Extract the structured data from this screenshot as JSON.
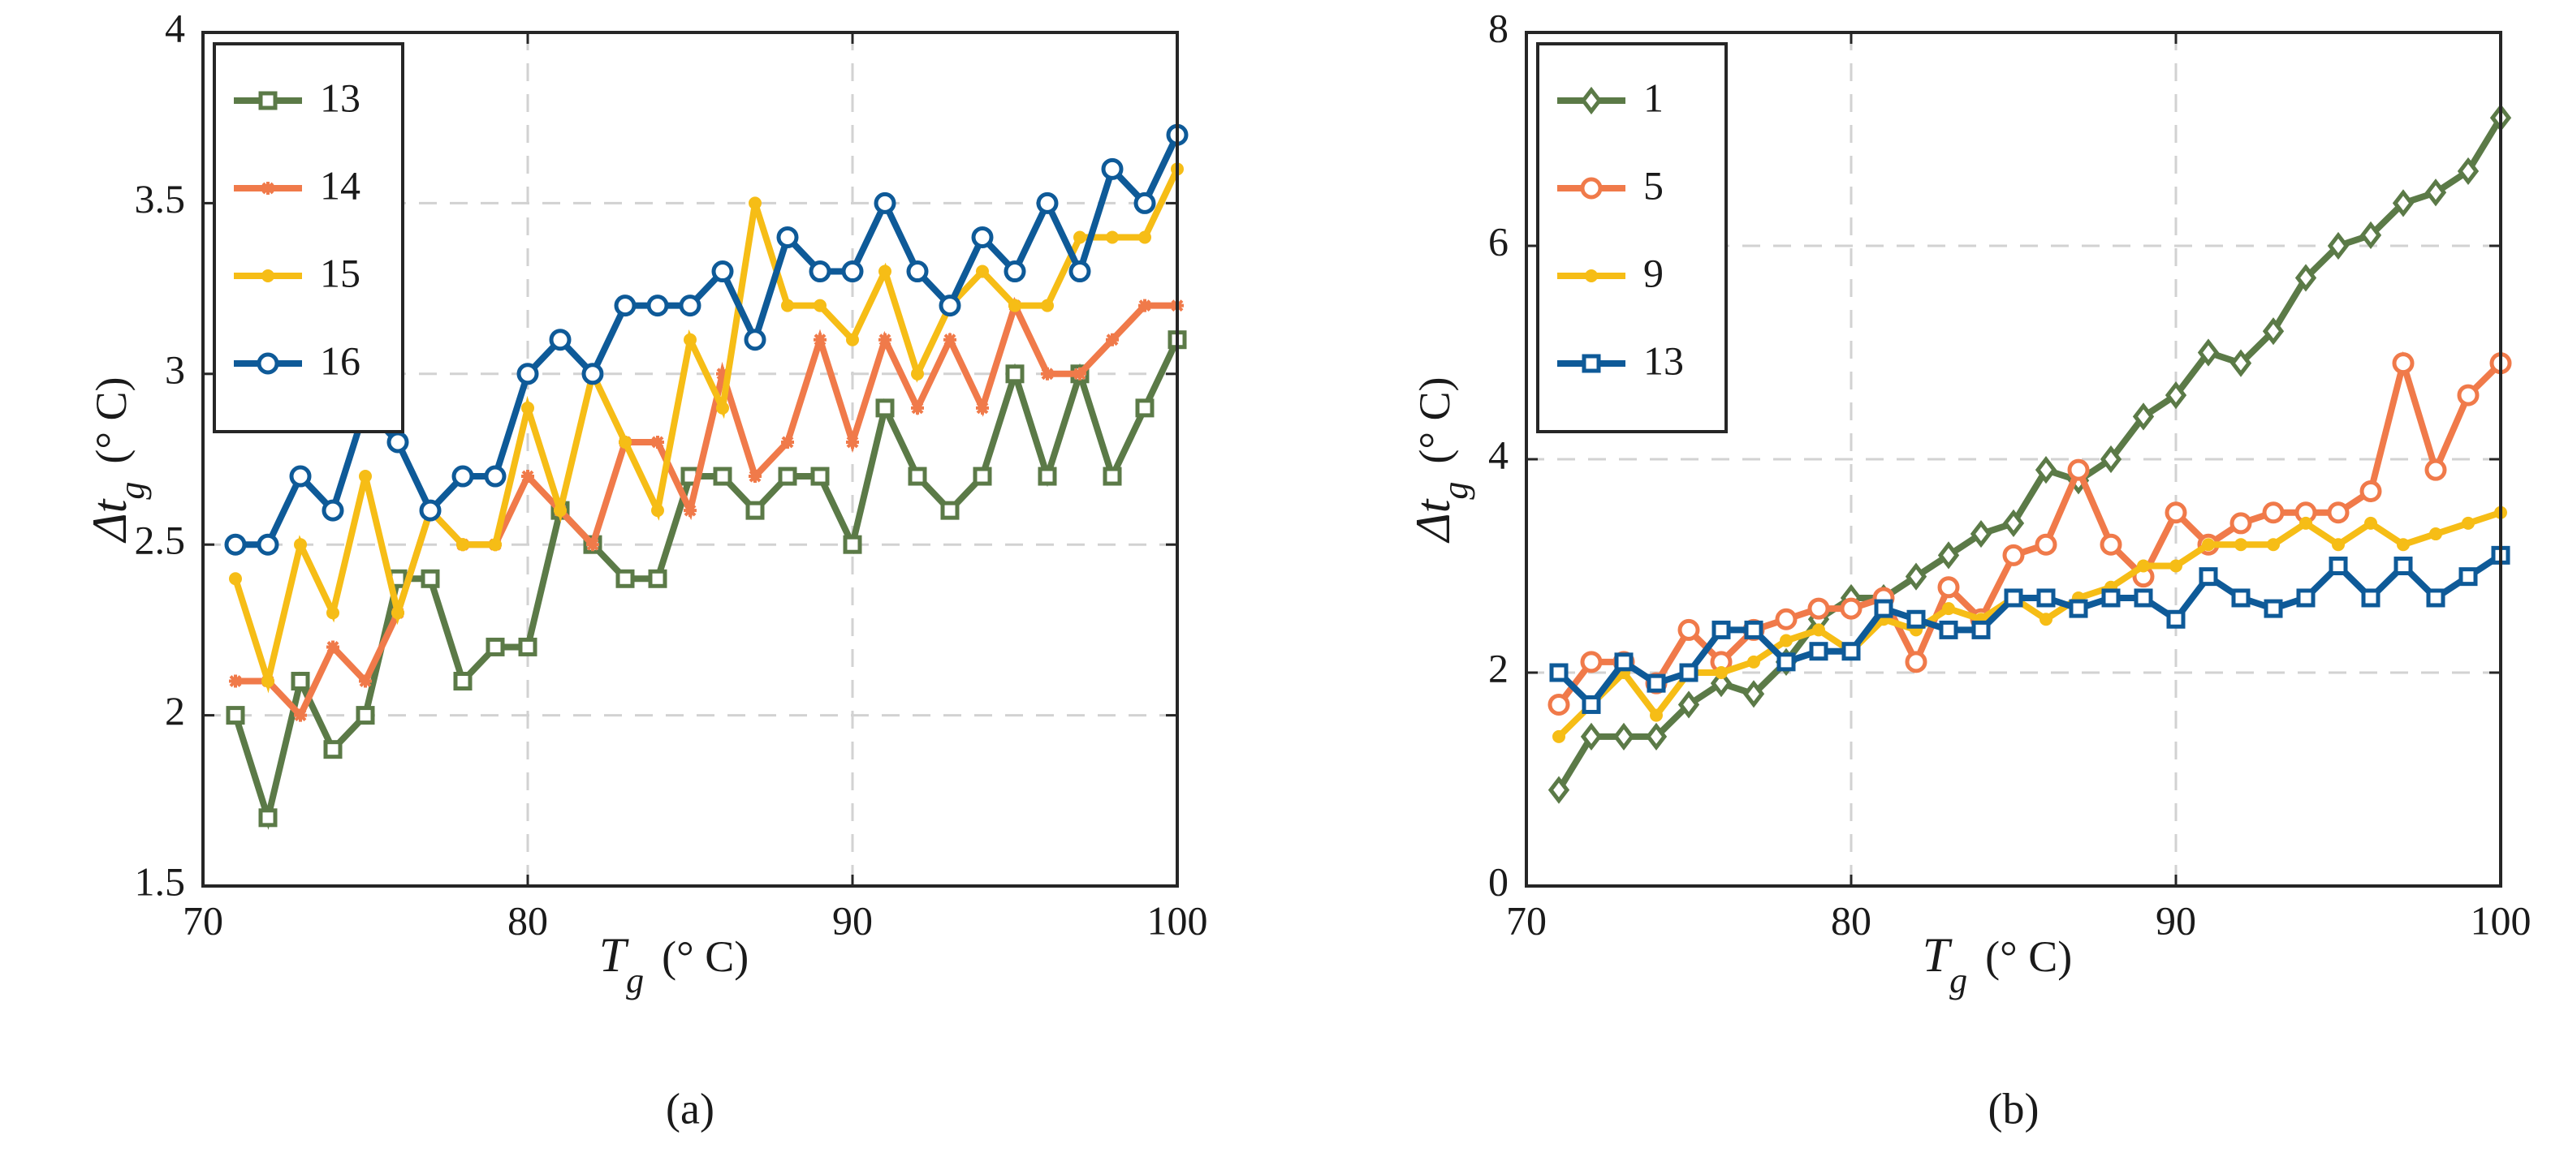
{
  "chart_data": [
    {
      "type": "line",
      "panel_label": "(a)",
      "xlabel_main": "T",
      "xlabel_sub": "g",
      "xlabel_unit": "(° C)",
      "ylabel_main": "Δt",
      "ylabel_sub": "g",
      "ylabel_unit": "(° C)",
      "xlim": [
        70,
        100
      ],
      "ylim": [
        1.5,
        4
      ],
      "xticks": [
        70,
        80,
        90,
        100
      ],
      "xtick_labels": [
        "70",
        "80",
        "90",
        "100"
      ],
      "yticks": [
        1.5,
        2,
        2.5,
        3,
        3.5,
        4
      ],
      "ytick_labels": [
        "1.5",
        "2",
        "2.5",
        "3",
        "3.5",
        "4"
      ],
      "grid": true,
      "legend_position": "top-left",
      "x": [
        71,
        72,
        73,
        74,
        75,
        76,
        77,
        78,
        79,
        80,
        81,
        82,
        83,
        84,
        85,
        86,
        87,
        88,
        89,
        90,
        91,
        92,
        93,
        94,
        95,
        96,
        97,
        98,
        99,
        100
      ],
      "series": [
        {
          "name": "13",
          "color": "#5b7a47",
          "marker": "square",
          "values": [
            2.0,
            1.7,
            2.1,
            1.9,
            2.0,
            2.4,
            2.4,
            2.1,
            2.2,
            2.2,
            2.6,
            2.5,
            2.4,
            2.4,
            2.7,
            2.7,
            2.6,
            2.7,
            2.7,
            2.5,
            2.9,
            2.7,
            2.6,
            2.7,
            3.0,
            2.7,
            3.0,
            2.7,
            2.9,
            3.1
          ]
        },
        {
          "name": "14",
          "color": "#f07a4a",
          "marker": "star",
          "values": [
            2.1,
            2.1,
            2.0,
            2.2,
            2.1,
            2.3,
            2.6,
            2.5,
            2.5,
            2.7,
            2.6,
            2.5,
            2.8,
            2.8,
            2.6,
            3.0,
            2.7,
            2.8,
            3.1,
            2.8,
            3.1,
            2.9,
            3.1,
            2.9,
            3.2,
            3.0,
            3.0,
            3.1,
            3.2,
            3.2
          ]
        },
        {
          "name": "15",
          "color": "#f6bd16",
          "marker": "dot",
          "values": [
            2.4,
            2.1,
            2.5,
            2.3,
            2.7,
            2.3,
            2.6,
            2.5,
            2.5,
            2.9,
            2.6,
            3.0,
            2.8,
            2.6,
            3.1,
            2.9,
            3.5,
            3.2,
            3.2,
            3.1,
            3.3,
            3.0,
            3.2,
            3.3,
            3.2,
            3.2,
            3.4,
            3.4,
            3.4,
            3.6
          ]
        },
        {
          "name": "16",
          "color": "#0e5a98",
          "marker": "circle",
          "values": [
            2.5,
            2.5,
            2.7,
            2.6,
            2.9,
            2.8,
            2.6,
            2.7,
            2.7,
            3.0,
            3.1,
            3.0,
            3.2,
            3.2,
            3.2,
            3.3,
            3.1,
            3.4,
            3.3,
            3.3,
            3.5,
            3.3,
            3.2,
            3.4,
            3.3,
            3.5,
            3.3,
            3.6,
            3.5,
            3.7
          ]
        }
      ]
    },
    {
      "type": "line",
      "panel_label": "(b)",
      "xlabel_main": "T",
      "xlabel_sub": "g",
      "xlabel_unit": "(° C)",
      "ylabel_main": "Δt",
      "ylabel_sub": "g",
      "ylabel_unit": "(° C)",
      "xlim": [
        70,
        100
      ],
      "ylim": [
        0,
        8
      ],
      "xticks": [
        70,
        80,
        90,
        100
      ],
      "xtick_labels": [
        "70",
        "80",
        "90",
        "100"
      ],
      "yticks": [
        0,
        2,
        4,
        6,
        8
      ],
      "ytick_labels": [
        "0",
        "2",
        "4",
        "6",
        "8"
      ],
      "grid": true,
      "legend_position": "top-left",
      "x": [
        71,
        72,
        73,
        74,
        75,
        76,
        77,
        78,
        79,
        80,
        81,
        82,
        83,
        84,
        85,
        86,
        87,
        88,
        89,
        90,
        91,
        92,
        93,
        94,
        95,
        96,
        97,
        98,
        99,
        100
      ],
      "series": [
        {
          "name": "1",
          "color": "#5b7a47",
          "marker": "diamond",
          "values": [
            0.9,
            1.4,
            1.4,
            1.4,
            1.7,
            1.9,
            1.8,
            2.1,
            2.5,
            2.7,
            2.7,
            2.9,
            3.1,
            3.3,
            3.4,
            3.9,
            3.8,
            4.0,
            4.4,
            4.6,
            5.0,
            4.9,
            5.2,
            5.7,
            6.0,
            6.1,
            6.4,
            6.5,
            6.7,
            7.2
          ]
        },
        {
          "name": "5",
          "color": "#f07a4a",
          "marker": "circle",
          "values": [
            1.7,
            2.1,
            2.1,
            1.9,
            2.4,
            2.1,
            2.4,
            2.5,
            2.6,
            2.6,
            2.7,
            2.1,
            2.8,
            2.5,
            3.1,
            3.2,
            3.9,
            3.2,
            2.9,
            3.5,
            3.2,
            3.4,
            3.5,
            3.5,
            3.5,
            3.7,
            4.9,
            3.9,
            4.6,
            4.9
          ]
        },
        {
          "name": "9",
          "color": "#f6bd16",
          "marker": "dot",
          "values": [
            1.4,
            1.7,
            2.0,
            1.6,
            2.0,
            2.0,
            2.1,
            2.3,
            2.4,
            2.2,
            2.5,
            2.4,
            2.6,
            2.5,
            2.7,
            2.5,
            2.7,
            2.8,
            3.0,
            3.0,
            3.2,
            3.2,
            3.2,
            3.4,
            3.2,
            3.4,
            3.2,
            3.3,
            3.4,
            3.5
          ]
        },
        {
          "name": "13",
          "color": "#0e5a98",
          "marker": "square",
          "values": [
            2.0,
            1.7,
            2.1,
            1.9,
            2.0,
            2.4,
            2.4,
            2.1,
            2.2,
            2.2,
            2.6,
            2.5,
            2.4,
            2.4,
            2.7,
            2.7,
            2.6,
            2.7,
            2.7,
            2.5,
            2.9,
            2.7,
            2.6,
            2.7,
            3.0,
            2.7,
            3.0,
            2.7,
            2.9,
            3.1
          ]
        }
      ]
    }
  ]
}
